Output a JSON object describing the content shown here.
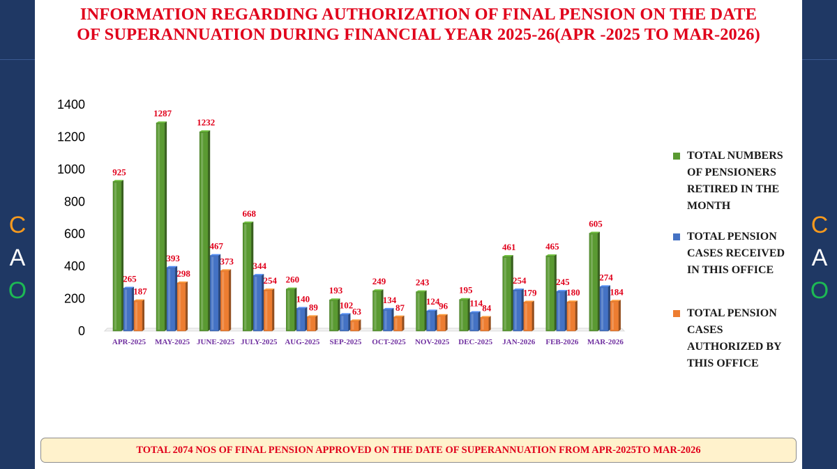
{
  "side_letters": [
    "C",
    "A",
    "O"
  ],
  "title_lines": [
    "INFORMATION REGARDING AUTHORIZATION  OF FINAL PENSION ON THE DATE",
    "OF SUPERANNUATION  DURING FINANCIAL YEAR 2025-26(APR -2025 TO MAR-2026)"
  ],
  "footer": "TOTAL 2074  NOS OF FINAL PENSION APPROVED ON THE DATE OF SUPERANNUATION FROM APR-2025TO MAR-2026",
  "chart_data": {
    "type": "bar",
    "title": "INFORMATION REGARDING AUTHORIZATION  OF FINAL PENSION ON THE DATE OF SUPERANNUATION  DURING FINANCIAL YEAR 2025-26(APR -2025 TO MAR-2026)",
    "categories": [
      "APR-2025",
      "MAY-2025",
      "JUNE-2025",
      "JULY-2025",
      "AUG-2025",
      "SEP-2025",
      "OCT-2025",
      "NOV-2025",
      "DEC-2025",
      "JAN-2026",
      "FEB-2026",
      "MAR-2026"
    ],
    "series": [
      {
        "name": "TOTAL NUMBERS OF PENSIONERS RETIRED IN THE MONTH",
        "color": "#5a9a32",
        "values": [
          925,
          1287,
          1232,
          668,
          260,
          193,
          249,
          243,
          195,
          461,
          465,
          605
        ]
      },
      {
        "name": "TOTAL PENSION CASES RECEIVED IN THIS OFFICE",
        "color": "#4472c4",
        "values": [
          265,
          393,
          467,
          344,
          140,
          102,
          134,
          124,
          114,
          254,
          245,
          274
        ]
      },
      {
        "name": "TOTAL PENSION CASES AUTHORIZED BY THIS OFFICE",
        "color": "#ed7d31",
        "values": [
          187,
          298,
          373,
          254,
          89,
          63,
          87,
          96,
          84,
          179,
          180,
          184
        ]
      }
    ],
    "y_ticks": [
      0,
      200,
      400,
      600,
      800,
      1000,
      1200,
      1400
    ],
    "ylim": [
      0,
      1400
    ],
    "grid": false,
    "legend_position": "right",
    "data_label_color": "#e0001b",
    "category_label_color": "#7030a0"
  },
  "legend_lines": [
    [
      "TOTAL NUMBERS",
      "OF PENSIONERS",
      "RETIRED IN THE",
      "MONTH"
    ],
    [
      "TOTAL PENSION",
      "CASES RECEIVED",
      "IN THIS OFFICE"
    ],
    [
      "TOTAL PENSION",
      "CASES",
      "AUTHORIZED BY",
      "THIS OFFICE"
    ]
  ],
  "colors": {
    "side_panel": "#1f3864",
    "title": "#e0001b",
    "footer_bg": "#fff2cc",
    "letter_c": "#f79a1e",
    "letter_a": "#ffffff",
    "letter_o": "#1db954"
  }
}
